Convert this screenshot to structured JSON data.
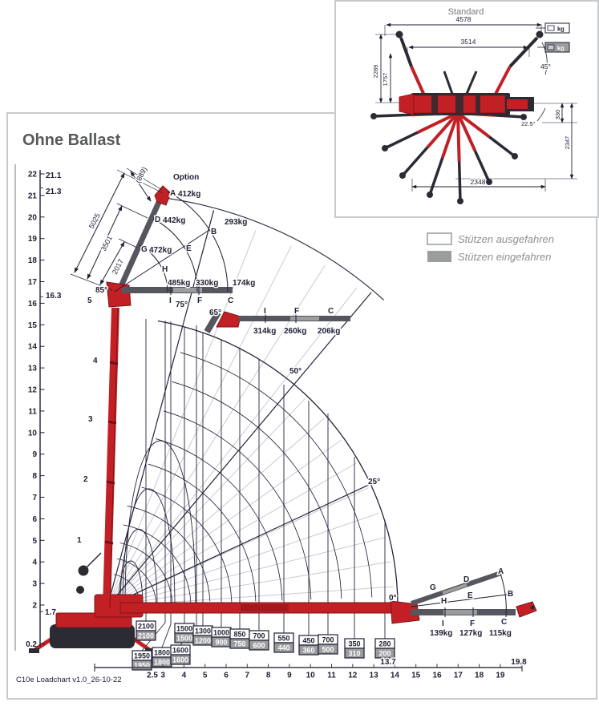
{
  "title": "Ohne Ballast",
  "footer": "C10e Loadchart v1.0_26-10-22",
  "inset": {
    "title": "Standard",
    "dim_top": "4578",
    "dim_second": "3514",
    "dim_left_outer": "2289",
    "dim_left_inner": "1757",
    "angle_right": "45°",
    "dim_offset": "330",
    "dim_right": "2347",
    "dim_bottom": "2348",
    "angle_lower": "22.5°",
    "kg_extended": "kg",
    "kg_retracted": "kg"
  },
  "legend": {
    "extended": "Stützen ausgefahren",
    "retracted": "Stützen eingefahren"
  },
  "colors": {
    "red": "#c32026",
    "ink": "#1e1f33",
    "gray_bar": "#55565e",
    "gray_light": "#9b9c9e",
    "frame": "#c9cacc"
  },
  "y_axis": {
    "ticks": [
      22,
      21,
      20,
      19,
      18,
      17,
      16,
      15,
      14,
      13,
      12,
      11,
      10,
      9,
      8,
      7,
      6,
      5,
      4,
      3,
      2,
      0.2
    ],
    "extra": {
      "max_option": "21.1",
      "max_standard": "21.3",
      "jib_height": "16.3",
      "pivot_height": "1.7"
    }
  },
  "x_axis": {
    "ticks": [
      2.5,
      3,
      4,
      5,
      6,
      7,
      8,
      9,
      10,
      11,
      12,
      13,
      14,
      15,
      16,
      17,
      18,
      19
    ],
    "extra": {
      "boom_reach": "13.7",
      "jib_reach": "19.8"
    }
  },
  "angles": {
    "a85": "85°",
    "a75": "75°",
    "a65": "65°",
    "a50": "50°",
    "a25": "25°",
    "a0": "0°"
  },
  "boom_sections": [
    "1",
    "2",
    "3",
    "4",
    "5"
  ],
  "jib_dims": {
    "d5025": "5025",
    "d3501": "3501",
    "d2017": "2017",
    "d889": "(889)",
    "option": "Option"
  },
  "letters": {
    "A": "A",
    "B": "B",
    "C": "C",
    "D": "D",
    "E": "E",
    "F": "F",
    "G": "G",
    "H": "H",
    "I": "I"
  },
  "loads_85": {
    "A": "412kg",
    "D": "442kg",
    "G": "472kg",
    "B": "293kg",
    "I": "485kg",
    "F": "330kg",
    "C": "174kg"
  },
  "loads_65": {
    "I": "314kg",
    "F": "260kg",
    "C": "206kg"
  },
  "loads_0": {
    "I": "139kg",
    "F": "127kg",
    "C": "115kg"
  },
  "load_boxes": [
    {
      "out": "2100",
      "in": "2100"
    },
    {
      "out": "1500",
      "in": "1500"
    },
    {
      "out": "1300",
      "in": "1200"
    },
    {
      "out": "1000",
      "in": "900"
    },
    {
      "out": "850",
      "in": "750"
    },
    {
      "out": "700",
      "in": "600"
    },
    {
      "out": "550",
      "in": "440"
    },
    {
      "out": "450",
      "in": "360"
    },
    {
      "out": "700",
      "in": "500"
    },
    {
      "out": "350",
      "in": "310"
    },
    {
      "out": "280",
      "in": "200"
    },
    {
      "out": "1950",
      "in": "1950"
    },
    {
      "out": "1800",
      "in": "1800"
    },
    {
      "out": "1600",
      "in": "1600"
    }
  ]
}
